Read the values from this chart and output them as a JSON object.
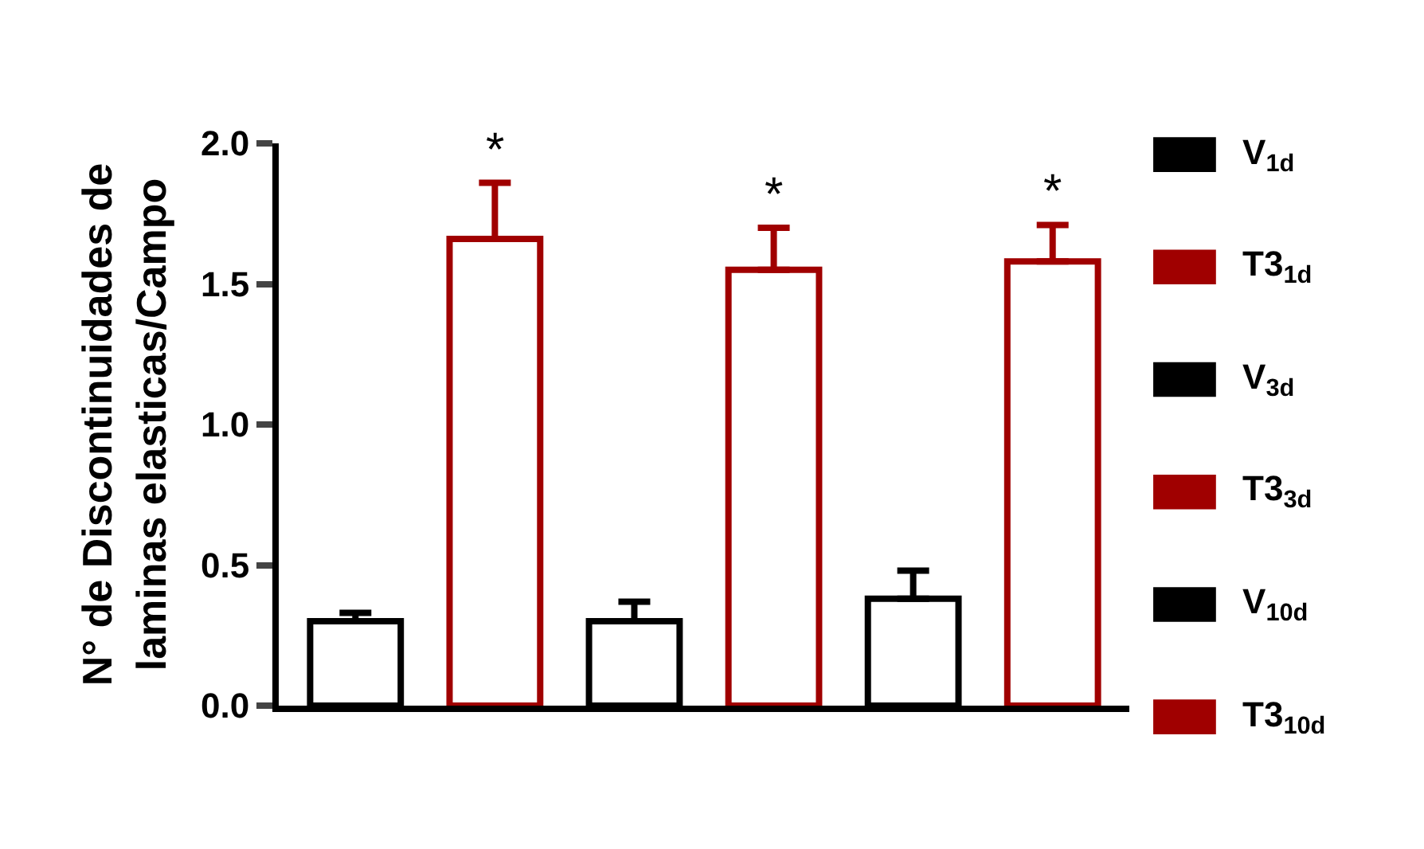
{
  "chart_data": {
    "type": "bar",
    "ylabel": "N° de Discontinuidades de\nlaminas elasticas/Campo",
    "categories": [
      null,
      null,
      null,
      null,
      null,
      null
    ],
    "series": [
      {
        "name": "V$_{1d}$",
        "color": "#000000",
        "values": [
          0.3,
          null,
          null,
          null,
          null,
          null
        ],
        "errors": [
          [
            0.3,
            0.33
          ],
          null,
          null,
          null,
          null,
          null
        ]
      },
      {
        "name": "T3$_{1d}$",
        "color": "#a00000",
        "values": [
          null,
          1.66,
          null,
          null,
          null,
          null
        ],
        "errors": [
          null,
          [
            1.66,
            1.86
          ],
          null,
          null,
          null,
          null
        ],
        "value_labels": [
          null,
          "*",
          null,
          null,
          null,
          null
        ]
      },
      {
        "name": "V$_{3d}$",
        "color": "#000000",
        "values": [
          null,
          null,
          0.3,
          null,
          null,
          null
        ],
        "errors": [
          null,
          null,
          [
            0.3,
            0.37
          ],
          null,
          null,
          null
        ]
      },
      {
        "name": "T3$_{3d}$",
        "color": "#a00000",
        "values": [
          null,
          null,
          null,
          1.55,
          null,
          null
        ],
        "errors": [
          null,
          null,
          null,
          [
            1.55,
            1.7
          ],
          null,
          null
        ],
        "value_labels": [
          null,
          null,
          null,
          "*",
          null,
          null
        ]
      },
      {
        "name": "V$_{10d}$",
        "color": "#000000",
        "values": [
          null,
          null,
          null,
          null,
          0.38,
          null
        ],
        "errors": [
          null,
          null,
          null,
          null,
          [
            0.38,
            0.48
          ],
          null
        ]
      },
      {
        "name": "T3$_{10d}$",
        "color": "#a00000",
        "values": [
          null,
          null,
          null,
          null,
          null,
          1.58
        ],
        "errors": [
          null,
          null,
          null,
          null,
          null,
          [
            1.58,
            1.71
          ]
        ],
        "value_labels": [
          null,
          null,
          null,
          null,
          null,
          "*"
        ]
      }
    ],
    "ylim": [
      0,
      2.0
    ],
    "yticks": [
      {
        "value": 0,
        "label": "0.0"
      },
      {
        "value": 0.5,
        "label": "0.5"
      },
      {
        "value": 1.0,
        "label": "1.0"
      },
      {
        "value": 1.5,
        "label": "1.5"
      },
      {
        "value": 2.0,
        "label": "2.0"
      }
    ],
    "tick_labels": "y",
    "legend": "right"
  }
}
